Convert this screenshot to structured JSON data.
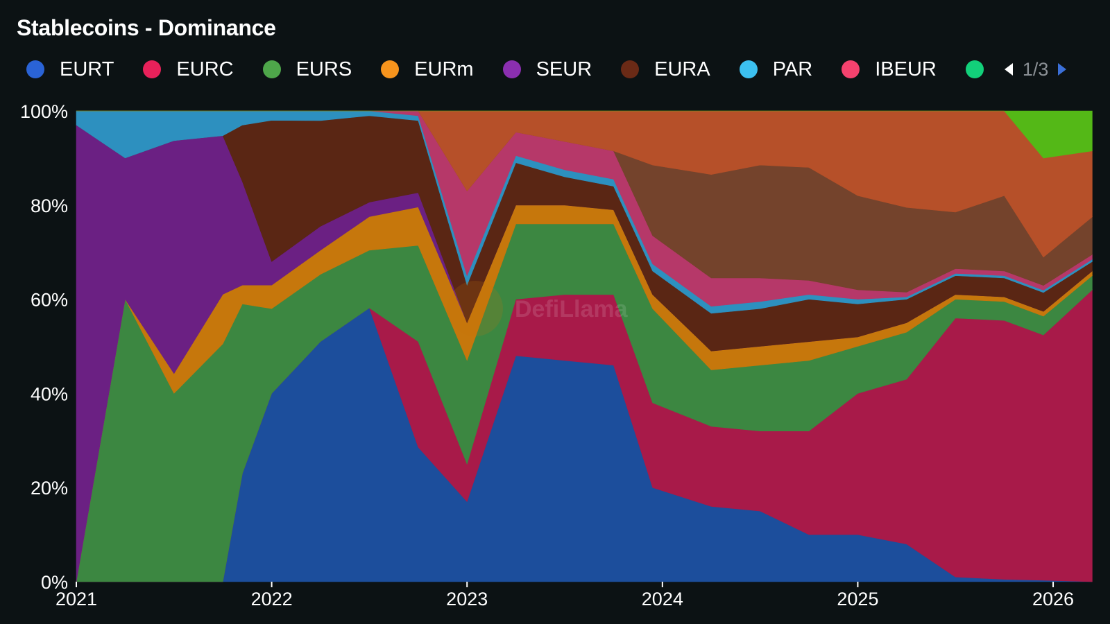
{
  "header": {
    "title": "Stablecoins - Dominance"
  },
  "legend": {
    "items": [
      {
        "label": "EURT",
        "color": "#2a63d6"
      },
      {
        "label": "EURC",
        "color": "#e8215a"
      },
      {
        "label": "EURS",
        "color": "#4ea64a"
      },
      {
        "label": "EURm",
        "color": "#f7941d"
      },
      {
        "label": "SEUR",
        "color": "#8b2fb0"
      },
      {
        "label": "EURA",
        "color": "#6a2a16"
      },
      {
        "label": "PAR",
        "color": "#3cc0f0"
      },
      {
        "label": "IBEUR",
        "color": "#f5426e"
      },
      {
        "label": "",
        "color": "#12d07a"
      }
    ],
    "pager": {
      "text": "1/3"
    }
  },
  "watermark": "DefiLlama",
  "chart_data": {
    "type": "area",
    "stacked": true,
    "normalized": true,
    "x": [
      2021.0,
      2021.25,
      2021.5,
      2021.75,
      2021.85,
      2022.0,
      2022.25,
      2022.5,
      2022.75,
      2023.0,
      2023.25,
      2023.5,
      2023.75,
      2023.95,
      2024.25,
      2024.5,
      2024.75,
      2025.0,
      2025.25,
      2025.5,
      2025.75,
      2025.95,
      2026.2
    ],
    "xlim": [
      2021.0,
      2026.22
    ],
    "ylim": [
      0,
      100
    ],
    "xticks": [
      "2021",
      "2022",
      "2023",
      "2024",
      "2025",
      "2026"
    ],
    "xtick_values": [
      2021,
      2022,
      2023,
      2024,
      2025,
      2026
    ],
    "yticks": [
      "0%",
      "20%",
      "40%",
      "60%",
      "80%",
      "100%"
    ],
    "ytick_values": [
      0,
      20,
      40,
      60,
      80,
      100
    ],
    "series": [
      {
        "name": "EURT",
        "color": "#1c4e9c",
        "values": [
          0,
          0,
          0,
          0,
          23,
          40,
          50,
          57,
          28,
          17,
          48,
          47,
          46,
          20,
          16,
          15,
          10,
          10,
          8,
          1,
          0.5,
          0.3,
          0
        ]
      },
      {
        "name": "EURC",
        "color": "#a81a49",
        "values": [
          0,
          0,
          0,
          0,
          0,
          0,
          0,
          0,
          22,
          8,
          12,
          14,
          15,
          18,
          17,
          17,
          22,
          30,
          35,
          55,
          55,
          52,
          62
        ]
      },
      {
        "name": "EURS",
        "color": "#3c8741",
        "values": [
          0,
          60,
          38,
          48,
          36,
          18,
          14,
          12,
          20,
          22,
          16,
          15,
          15,
          20,
          12,
          14,
          15,
          10,
          10,
          4,
          4,
          4,
          3
        ]
      },
      {
        "name": "EURm",
        "color": "#c6770c",
        "values": [
          0,
          0,
          4,
          10,
          4,
          5,
          5,
          7,
          8,
          8,
          4,
          4,
          3,
          3,
          4,
          4,
          4,
          2,
          2,
          1,
          1,
          1,
          1
        ]
      },
      {
        "name": "SEUR",
        "color": "#6b2083",
        "values": [
          97,
          30,
          47,
          32,
          22,
          5,
          5,
          3,
          3,
          0,
          0,
          0,
          0,
          0,
          0,
          0,
          0,
          0,
          0,
          0,
          0,
          0,
          0
        ]
      },
      {
        "name": "EURA",
        "color": "#5a2614",
        "values": [
          0,
          0,
          0,
          0,
          12,
          30,
          22,
          18,
          15,
          8,
          9,
          6,
          5,
          5,
          8,
          8,
          9,
          7,
          5,
          4,
          4,
          4,
          2
        ]
      },
      {
        "name": "PAR",
        "color": "#2d90bf",
        "values": [
          3,
          10,
          6,
          5,
          3,
          2,
          2,
          1,
          1,
          2,
          1.5,
          1.5,
          1.5,
          1.5,
          1.5,
          1.5,
          1,
          1,
          0.5,
          0.5,
          0.5,
          0.5,
          0.5
        ]
      },
      {
        "name": "IBEUR",
        "color": "#b63869",
        "values": [
          0,
          0,
          0,
          0,
          0,
          0,
          0,
          0,
          1,
          18,
          5,
          6,
          6,
          6,
          6,
          5,
          3,
          2,
          1,
          1,
          1,
          1,
          1
        ]
      },
      {
        "name": "",
        "color": "#74432c",
        "values": [
          0,
          0,
          0,
          0,
          0,
          0,
          0,
          0,
          0,
          0,
          0,
          0,
          0,
          15,
          22,
          24,
          24,
          20,
          18,
          12,
          16,
          6,
          8
        ]
      },
      {
        "name": "",
        "color": "#b65029",
        "values": [
          0,
          0,
          0,
          0,
          0,
          0,
          0,
          0,
          0,
          17,
          4.5,
          6.5,
          8.5,
          11.5,
          13.5,
          11.5,
          12,
          18,
          20.5,
          21.5,
          18,
          21,
          14
        ]
      },
      {
        "name": "",
        "color": "#54b817",
        "values": [
          0,
          0,
          0,
          0,
          0,
          0,
          0,
          0,
          0,
          0,
          0,
          0,
          0,
          0,
          0,
          0,
          0,
          0,
          0,
          0,
          0,
          10,
          8.5
        ]
      }
    ]
  }
}
